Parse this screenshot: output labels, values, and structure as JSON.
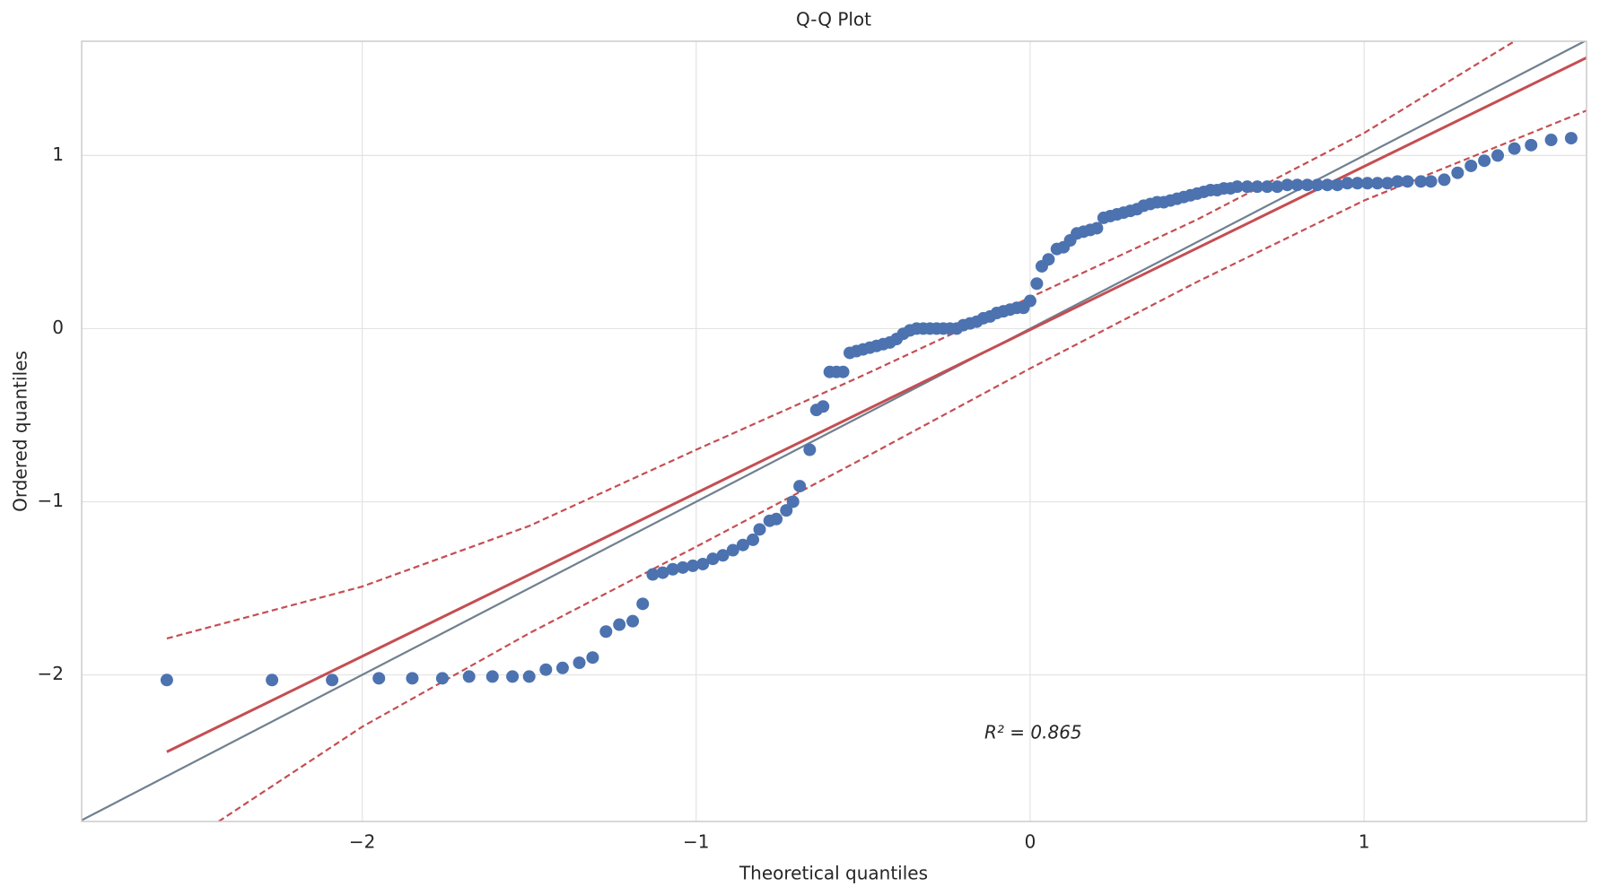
{
  "chart_data": {
    "type": "scatter",
    "title": "Q-Q Plot",
    "xlabel": "Theoretical quantiles",
    "ylabel": "Ordered quantiles",
    "annotation": "R² = 0.865",
    "xlim": [
      -2.84,
      1.666
    ],
    "ylim": [
      -2.847,
      1.66
    ],
    "xticks": [
      {
        "value": -2,
        "label": "−2"
      },
      {
        "value": -1,
        "label": "−1"
      },
      0,
      1
    ],
    "yticks": [
      {
        "value": -2,
        "label": "−2"
      },
      {
        "value": -1,
        "label": "−1"
      },
      0,
      1
    ],
    "grid": true,
    "series": [
      {
        "color": "#4c72b0",
        "marker": "o",
        "x": [
          -2.585,
          -2.27,
          -2.09,
          -1.95,
          -1.85,
          -1.76,
          -1.68,
          -1.61,
          -1.55,
          -1.5,
          -1.45,
          -1.4,
          -1.35,
          -1.31,
          -1.27,
          -1.23,
          -1.19,
          -1.16,
          -1.13,
          -1.1,
          -1.07,
          -1.04,
          -1.01,
          -0.98,
          -0.95,
          -0.92,
          -0.89,
          -0.86,
          -0.83,
          -0.81,
          -0.78,
          -0.76,
          -0.73,
          -0.71,
          -0.69,
          -0.66,
          -0.64,
          -0.62,
          -0.6,
          -0.58,
          -0.56,
          -0.54,
          -0.52,
          -0.5,
          -0.48,
          -0.46,
          -0.44,
          -0.42,
          -0.4,
          -0.38,
          -0.36,
          -0.34,
          -0.32,
          -0.3,
          -0.28,
          -0.26,
          -0.24,
          -0.22,
          -0.2,
          -0.18,
          -0.16,
          -0.14,
          -0.12,
          -0.1,
          -0.08,
          -0.06,
          -0.04,
          -0.02,
          0,
          0.02,
          0.035,
          0.055,
          0.08,
          0.1,
          0.12,
          0.14,
          0.16,
          0.18,
          0.2,
          0.22,
          0.24,
          0.26,
          0.28,
          0.3,
          0.32,
          0.34,
          0.36,
          0.38,
          0.4,
          0.42,
          0.44,
          0.46,
          0.48,
          0.5,
          0.52,
          0.54,
          0.56,
          0.58,
          0.6,
          0.62,
          0.65,
          0.68,
          0.71,
          0.74,
          0.77,
          0.8,
          0.83,
          0.86,
          0.89,
          0.92,
          0.95,
          0.98,
          1.01,
          1.04,
          1.07,
          1.1,
          1.13,
          1.17,
          1.2,
          1.24,
          1.28,
          1.32,
          1.36,
          1.4,
          1.45,
          1.5,
          1.56,
          1.62
        ],
        "values": [
          -2.03,
          -2.03,
          -2.03,
          -2.02,
          -2.02,
          -2.02,
          -2.01,
          -2.01,
          -2.01,
          -2.01,
          -1.97,
          -1.96,
          -1.93,
          -1.9,
          -1.75,
          -1.71,
          -1.69,
          -1.59,
          -1.42,
          -1.41,
          -1.39,
          -1.38,
          -1.37,
          -1.36,
          -1.33,
          -1.31,
          -1.28,
          -1.25,
          -1.22,
          -1.16,
          -1.11,
          -1.1,
          -1.05,
          -1.0,
          -0.91,
          -0.7,
          -0.47,
          -0.45,
          -0.25,
          -0.25,
          -0.25,
          -0.14,
          -0.13,
          -0.12,
          -0.11,
          -0.1,
          -0.09,
          -0.08,
          -0.06,
          -0.03,
          -0.01,
          0,
          0,
          0,
          0,
          0,
          0,
          0,
          0.02,
          0.03,
          0.04,
          0.06,
          0.07,
          0.09,
          0.1,
          0.11,
          0.12,
          0.12,
          0.16,
          0.26,
          0.36,
          0.4,
          0.46,
          0.47,
          0.51,
          0.55,
          0.56,
          0.57,
          0.58,
          0.64,
          0.65,
          0.66,
          0.67,
          0.68,
          0.69,
          0.71,
          0.72,
          0.73,
          0.73,
          0.74,
          0.75,
          0.76,
          0.77,
          0.78,
          0.79,
          0.8,
          0.8,
          0.81,
          0.81,
          0.82,
          0.82,
          0.82,
          0.82,
          0.82,
          0.83,
          0.83,
          0.83,
          0.83,
          0.83,
          0.83,
          0.84,
          0.84,
          0.84,
          0.84,
          0.84,
          0.85,
          0.85,
          0.85,
          0.85,
          0.86,
          0.9,
          0.94,
          0.97,
          1.0,
          1.04,
          1.06,
          1.09,
          1.1
        ]
      },
      {
        "color": "#708090",
        "linestyle": "solid",
        "x": [
          -2.84,
          1.666
        ],
        "values": [
          -2.84,
          1.666
        ]
      },
      {
        "color": "#c44e52",
        "linestyle": "solid",
        "width": 3,
        "x": [
          -2.585,
          1.666
        ],
        "values": [
          -2.445,
          1.565
        ]
      },
      {
        "color": "#c44e52",
        "linestyle": "dashed",
        "x": [
          -2.585,
          -2,
          -1.5,
          -1,
          -0.5,
          0,
          0.5,
          1,
          1.45
        ],
        "values": [
          -1.79,
          -1.49,
          -1.14,
          -0.7,
          -0.27,
          0.18,
          0.63,
          1.13,
          1.66
        ]
      },
      {
        "color": "#c44e52",
        "linestyle": "dashed",
        "x": [
          -2.43,
          -2,
          -1.5,
          -1,
          -0.5,
          0,
          0.5,
          1,
          1.666
        ],
        "values": [
          -2.847,
          -2.3,
          -1.76,
          -1.26,
          -0.75,
          -0.23,
          0.27,
          0.74,
          1.26
        ]
      }
    ]
  }
}
